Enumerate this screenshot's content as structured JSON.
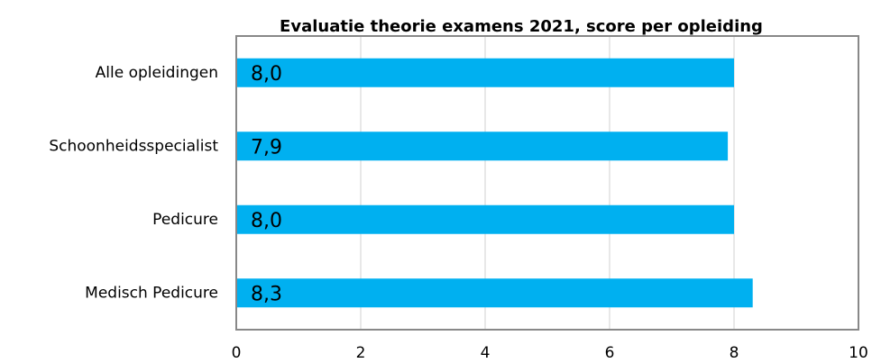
{
  "chart_data": {
    "type": "bar",
    "orientation": "horizontal",
    "title": "Evaluatie theorie examens 2021,  score per opleiding",
    "categories": [
      "Alle opleidingen",
      "Schoonheidsspecialist",
      "Pedicure",
      "Medisch Pedicure"
    ],
    "values": [
      8.0,
      7.9,
      8.0,
      8.3
    ],
    "value_labels": [
      "8,0",
      "7,9",
      "8,0",
      "8,3"
    ],
    "color": "#00b0f0",
    "xlim": [
      0,
      10
    ],
    "xticks": [
      0,
      2,
      4,
      6,
      8,
      10
    ],
    "grid": true
  }
}
